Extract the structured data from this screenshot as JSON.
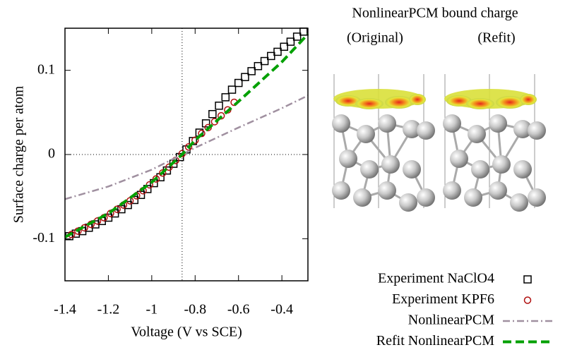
{
  "chart_data": {
    "type": "line",
    "annotations": [
      "NonlinearPCM bound charge",
      "(Original)",
      "(Refit)"
    ],
    "xlabel": "Voltage (V vs SCE)",
    "ylabel": "Surface charge per atom",
    "xlim": [
      -1.4,
      -0.28
    ],
    "ylim": [
      -0.15,
      0.15
    ],
    "xticks": [
      -1.4,
      -1.2,
      -1,
      -0.8,
      -0.6,
      -0.4
    ],
    "yticks": [
      -0.1,
      0,
      0.1
    ],
    "vline": -0.86,
    "hline": 0,
    "series": [
      {
        "name": "Experiment NaClO4",
        "style": "square",
        "color": "#000000",
        "x": [
          -1.38,
          -1.35,
          -1.32,
          -1.29,
          -1.26,
          -1.23,
          -1.2,
          -1.17,
          -1.14,
          -1.11,
          -1.08,
          -1.05,
          -1.02,
          -0.99,
          -0.96,
          -0.93,
          -0.9,
          -0.87,
          -0.84,
          -0.81,
          -0.78,
          -0.75,
          -0.72,
          -0.69,
          -0.66,
          -0.63,
          -0.6,
          -0.57,
          -0.54,
          -0.51,
          -0.48,
          -0.45,
          -0.42,
          -0.39,
          -0.36,
          -0.33,
          -0.3
        ],
        "values": [
          -0.097,
          -0.094,
          -0.091,
          -0.087,
          -0.083,
          -0.079,
          -0.075,
          -0.07,
          -0.065,
          -0.06,
          -0.054,
          -0.048,
          -0.041,
          -0.034,
          -0.027,
          -0.019,
          -0.011,
          -0.003,
          0.006,
          0.016,
          0.026,
          0.037,
          0.048,
          0.058,
          0.068,
          0.077,
          0.085,
          0.092,
          0.099,
          0.105,
          0.111,
          0.117,
          0.122,
          0.128,
          0.134,
          0.14,
          0.146
        ]
      },
      {
        "name": "Experiment KPF6",
        "style": "circle",
        "color": "#b01010",
        "x": [
          -1.37,
          -1.34,
          -1.31,
          -1.28,
          -1.25,
          -1.22,
          -1.19,
          -1.16,
          -1.13,
          -1.1,
          -1.07,
          -1.04,
          -1.01,
          -0.98,
          -0.95,
          -0.92,
          -0.89,
          -0.86,
          -0.83,
          -0.8,
          -0.77,
          -0.74,
          -0.71,
          -0.68,
          -0.65,
          -0.62
        ],
        "values": [
          -0.095,
          -0.091,
          -0.087,
          -0.083,
          -0.079,
          -0.075,
          -0.07,
          -0.065,
          -0.06,
          -0.055,
          -0.049,
          -0.043,
          -0.036,
          -0.029,
          -0.022,
          -0.015,
          -0.007,
          0.001,
          0.009,
          0.017,
          0.025,
          0.032,
          0.039,
          0.046,
          0.053,
          0.062
        ]
      },
      {
        "name": "NonlinearPCM",
        "style": "dashdot",
        "color": "#a090a0",
        "x": [
          -1.4,
          -1.2,
          -1.0,
          -0.86,
          -0.8,
          -0.6,
          -0.4,
          -0.28
        ],
        "values": [
          -0.053,
          -0.038,
          -0.018,
          0.0,
          0.008,
          0.032,
          0.055,
          0.07
        ]
      },
      {
        "name": "Refit NonlinearPCM",
        "style": "dashed",
        "color": "#00a000",
        "x": [
          -1.4,
          -1.2,
          -1.0,
          -0.86,
          -0.8,
          -0.6,
          -0.4,
          -0.28
        ],
        "values": [
          -0.098,
          -0.07,
          -0.033,
          0.0,
          0.017,
          0.063,
          0.11,
          0.143
        ]
      }
    ]
  }
}
